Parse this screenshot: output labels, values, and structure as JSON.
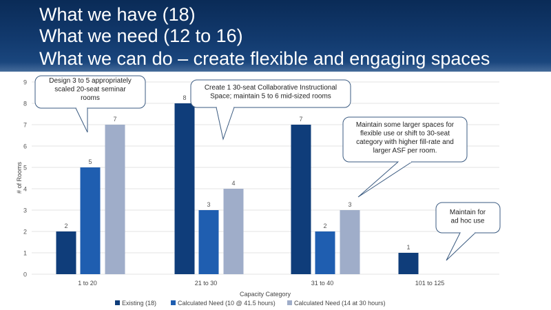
{
  "slide": {
    "title_lines": [
      "What we have (18)",
      "What we need (12 to 16)",
      "What we can do – create flexible and engaging spaces"
    ]
  },
  "callouts": [
    {
      "lines": [
        "Design 3 to 5 appropriately",
        "scaled 20-seat seminar",
        "rooms"
      ]
    },
    {
      "lines": [
        "Create 1 30-seat Collaborative Instructional",
        "Space; maintain 5 to 6 mid-sized rooms"
      ]
    },
    {
      "lines": [
        "Maintain some larger spaces for",
        "flexible use or  shift to 30-seat",
        "category with higher fill-rate and",
        "larger ASF per room."
      ]
    },
    {
      "lines": [
        "Maintain for",
        "ad hoc use"
      ]
    }
  ],
  "chart_data": {
    "type": "bar",
    "title": "",
    "xlabel": "Capacity Category",
    "ylabel": "# of Rooms",
    "ylim": [
      0,
      9
    ],
    "yticks": [
      0,
      1,
      2,
      3,
      4,
      5,
      6,
      7,
      8,
      9
    ],
    "grid": true,
    "legend_position": "bottom",
    "categories": [
      "1 to 20",
      "21 to 30",
      "31 to 40",
      "101 to 125"
    ],
    "series": [
      {
        "name": "Existing (18)",
        "color": "#0f3d7a",
        "values": [
          2,
          8,
          7,
          1
        ]
      },
      {
        "name": "Calculated Need (10 @ 41.5 hours)",
        "color": "#1f5eb0",
        "values": [
          5,
          3,
          2,
          null
        ]
      },
      {
        "name": "Calculated Need (14 at 30 hours)",
        "color": "#9fadc9",
        "values": [
          7,
          4,
          3,
          null
        ]
      }
    ],
    "data_labels": [
      [
        "2",
        "8",
        "7",
        "1"
      ],
      [
        "5",
        "3",
        "2",
        ""
      ],
      [
        "7",
        "4",
        "3",
        ""
      ]
    ]
  }
}
